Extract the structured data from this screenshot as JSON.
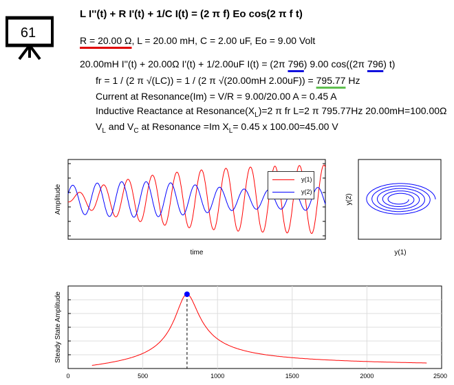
{
  "badge": {
    "number": "61"
  },
  "equation_title": "L I''(t) + R I'(t) + 1/C I(t) = (2 π f) Eo cos(2 π f t)",
  "params": {
    "r": "R = 20.00 Ω",
    "rest": ", L = 20.00 mH, C = 2.00 uF, Eo = 9.00 Volt"
  },
  "lines": {
    "ode_a": "20.00mH I''(t) + 20.00Ω I'(t) + 1/2.00uF I(t) = (2π ",
    "ode_f1": "796",
    "ode_b": ") 9.00 cos((2π ",
    "ode_f2": "796",
    "ode_c": ") t)",
    "fr_a": "fr = 1 / (2 π √(LC)) = 1 / (2 π √(20.00mH 2.00uF)) = ",
    "fr_val": "795.77",
    "fr_unit": " Hz",
    "current": "Current at Resonance(Im) = V/R = 9.00/20.00 A = 0.45 A",
    "xl_a": "Inductive Reactance at Resonance(X",
    "xl_sub": "L",
    "xl_b": ")=2 π fr L=2 π 795.77Hz 20.00mH=100.00Ω",
    "v_a": "V",
    "v_sub1": "L",
    "v_b": " and V",
    "v_sub2": "C",
    "v_c": " at Resonance =Im X",
    "v_sub3": "L",
    "v_d": "= 0.45 x 100.00=45.00 V"
  },
  "chart_data": [
    {
      "type": "line",
      "xlabel": "time",
      "ylabel": "Amplitude",
      "series": [
        {
          "name": "y(1)",
          "color": "#ff0000"
        },
        {
          "name": "y(2)",
          "color": "#0000ff"
        }
      ],
      "legend": "top-right"
    },
    {
      "type": "line",
      "xlabel": "y(1)",
      "ylabel": "y(2)",
      "series": [
        {
          "color": "#0000ff"
        }
      ]
    },
    {
      "type": "line",
      "xlabel": "",
      "ylabel": "Steady State Amplitude",
      "xlim": [
        0,
        2500
      ],
      "xticks": [
        "0",
        "500",
        "1000",
        "1500",
        "2000",
        "2500"
      ],
      "peak": {
        "x": 796,
        "y": 0.45
      },
      "x": [
        160,
        300,
        450,
        600,
        700,
        750,
        796,
        850,
        900,
        1000,
        1200,
        1500,
        2000,
        2400
      ],
      "y": [
        0.007,
        0.02,
        0.045,
        0.095,
        0.19,
        0.31,
        0.45,
        0.31,
        0.2,
        0.12,
        0.075,
        0.05,
        0.035,
        0.028
      ],
      "series": [
        {
          "color": "#ff0000"
        }
      ],
      "marker_color": "#0000ff"
    }
  ]
}
